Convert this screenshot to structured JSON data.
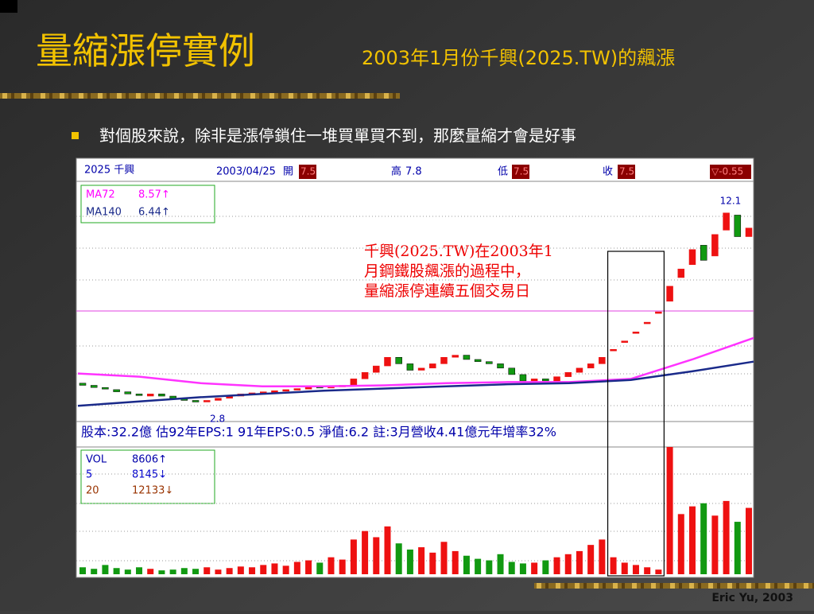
{
  "header": {
    "title": "量縮漲停實例",
    "subtitle": "2003年1月份千興(2025.TW)的飆漲"
  },
  "bullet": "對個股來說，除非是漲停鎖住一堆買單買不到，那麼量縮才會是好事",
  "footer": "Eric Yu, 2003",
  "stock_chart": {
    "top_bar": {
      "symbol": "2025 千興",
      "date": "2003/04/25",
      "open_label": "開",
      "open": "7.5",
      "high_label": "高",
      "high": "7.8",
      "low_label": "低",
      "low": "7.5",
      "close_label": "收",
      "close": "7.5",
      "change": "▽-0.55"
    },
    "ma_legend": [
      {
        "name": "MA72",
        "value": "8.57↑"
      },
      {
        "name": "MA140",
        "value": "6.44↑"
      }
    ],
    "max_label": 12.1,
    "min_label": 2.8,
    "info_line": "股本:32.2億  估92年EPS:1  91年EPS:0.5  淨值:6.2    註:3月營收4.41億元年增率32%",
    "annotation": [
      "千興(2025.TW)在2003年1",
      "月鋼鐵股飆漲的過程中，",
      "量縮漲停連續五個交易日"
    ],
    "vol_legend": [
      {
        "name": "VOL",
        "value": "8606↑"
      },
      {
        "name": "5",
        "value": "8145↓"
      },
      {
        "name": "20",
        "value": "12133↓"
      }
    ],
    "opens": [
      4.1,
      4.0,
      3.9,
      3.8,
      3.7,
      3.6,
      3.5,
      3.6,
      3.5,
      3.4,
      3.3,
      3.25,
      3.3,
      3.4,
      3.5,
      3.6,
      3.65,
      3.7,
      3.75,
      3.8,
      3.85,
      3.95,
      3.9,
      3.95,
      4.0,
      4.3,
      4.6,
      4.9,
      5.3,
      5.0,
      4.7,
      4.8,
      5.0,
      5.3,
      5.4,
      5.2,
      5.1,
      5.0,
      4.8,
      4.5,
      4.2,
      4.3,
      4.2,
      4.4,
      4.6,
      4.8,
      5.0,
      5.67,
      6.06,
      6.48,
      6.93,
      7.41,
      7.9,
      9.0,
      9.6,
      10.5,
      10.0,
      11.2,
      11.9,
      10.9
    ],
    "closes": [
      4.0,
      3.9,
      3.85,
      3.7,
      3.6,
      3.55,
      3.6,
      3.5,
      3.4,
      3.3,
      3.25,
      3.3,
      3.4,
      3.5,
      3.6,
      3.65,
      3.7,
      3.75,
      3.8,
      3.85,
      3.9,
      3.9,
      3.95,
      4.0,
      4.3,
      4.6,
      4.9,
      5.3,
      5.0,
      4.7,
      4.8,
      5.0,
      5.3,
      5.4,
      5.2,
      5.1,
      5.0,
      4.8,
      4.5,
      4.2,
      4.3,
      4.2,
      4.4,
      4.6,
      4.8,
      5.0,
      5.3,
      5.67,
      6.06,
      6.48,
      6.93,
      7.41,
      8.6,
      9.4,
      10.3,
      9.8,
      11.0,
      12.0,
      10.9,
      11.3
    ],
    "ma72": {
      "color": "#ff33ff",
      "values": [
        4.55,
        4.4,
        4.1,
        3.95,
        3.95,
        4.0,
        4.1,
        4.15,
        4.15,
        4.3,
        5.2,
        6.2
      ]
    },
    "ma140": {
      "color": "#1a2a8a",
      "values": [
        3.05,
        3.25,
        3.45,
        3.6,
        3.75,
        3.85,
        3.95,
        4.05,
        4.1,
        4.25,
        4.65,
        5.1
      ]
    },
    "volumes": [
      900,
      700,
      1200,
      800,
      600,
      900,
      700,
      500,
      600,
      800,
      700,
      900,
      600,
      800,
      1000,
      900,
      1200,
      1400,
      1100,
      1600,
      1800,
      1500,
      2200,
      1900,
      4500,
      5600,
      4800,
      6200,
      4000,
      3200,
      3500,
      2800,
      4200,
      3000,
      2400,
      2000,
      1800,
      2600,
      1600,
      1400,
      1500,
      1800,
      2200,
      2600,
      3000,
      3800,
      4500,
      2200,
      1500,
      1200,
      900,
      600,
      16500,
      7800,
      8800,
      9200,
      7600,
      9500,
      6800,
      8606
    ],
    "up_color": "#ee1111",
    "down_color": "#119911"
  }
}
